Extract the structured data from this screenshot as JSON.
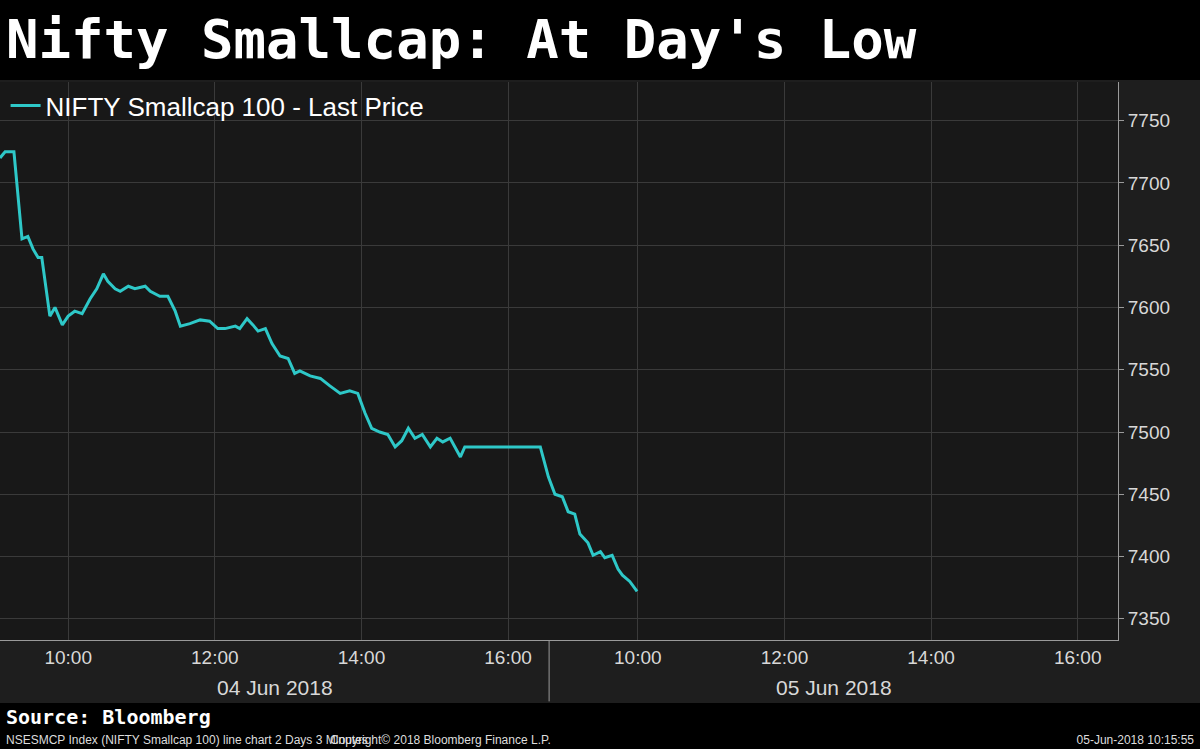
{
  "chart_data": {
    "type": "line",
    "title": "Nifty Smallcap: At Day's Low",
    "source": "Source: Bloomberg",
    "footer": [
      "NSESMCP Index (NIFTY Smallcap 100) line chart 2 Days 3 Minutes",
      "Copyright© 2018 Bloomberg Finance L.P.",
      "05-Jun-2018 10:15:55"
    ],
    "x": [
      9.07,
      9.14,
      9.26,
      9.37,
      9.45,
      9.52,
      9.59,
      9.64,
      9.75,
      9.82,
      9.92,
      10.0,
      10.09,
      10.19,
      10.3,
      10.39,
      10.48,
      10.54,
      10.64,
      10.71,
      10.82,
      10.91,
      11.05,
      11.12,
      11.25,
      11.36,
      11.46,
      11.53,
      11.66,
      11.8,
      11.93,
      12.04,
      12.14,
      12.28,
      12.34,
      12.44,
      12.52,
      12.59,
      12.69,
      12.78,
      12.89,
      13.0,
      13.09,
      13.16,
      13.3,
      13.44,
      13.57,
      13.71,
      13.84,
      13.95,
      14.05,
      14.14,
      14.25,
      14.36,
      14.46,
      14.55,
      14.64,
      14.73,
      14.83,
      14.94,
      15.03,
      15.11,
      15.21,
      15.28,
      15.35,
      15.41,
      16.44,
      16.55,
      16.64,
      16.74,
      16.82,
      16.91,
      16.98,
      17.09,
      17.16,
      17.26,
      17.32,
      17.42,
      17.5,
      17.56,
      17.66,
      17.76
    ],
    "series": [
      {
        "name": "NIFTY Smallcap 100 - Last Price",
        "color": "#2ec8c8",
        "values": [
          7720,
          7725,
          7725,
          7655,
          7657,
          7647,
          7640,
          7640,
          7593,
          7600,
          7586,
          7593,
          7597,
          7595,
          7607,
          7615,
          7627,
          7621,
          7615,
          7613,
          7617,
          7615,
          7617,
          7613,
          7609,
          7609,
          7597,
          7585,
          7587,
          7590,
          7589,
          7583,
          7583,
          7585,
          7583,
          7591,
          7586,
          7581,
          7583,
          7571,
          7561,
          7559,
          7547,
          7549,
          7545,
          7543,
          7537,
          7531,
          7533,
          7531,
          7515,
          7503,
          7500,
          7498,
          7488,
          7493,
          7503,
          7495,
          7498,
          7488,
          7495,
          7492,
          7495,
          7488,
          7480,
          7488,
          7488,
          7464,
          7450,
          7448,
          7436,
          7434,
          7418,
          7411,
          7401,
          7404,
          7399,
          7401,
          7390,
          7385,
          7380,
          7372
        ]
      }
    ],
    "xlim": [
      9.07,
      24.32
    ],
    "xticks": [
      {
        "value": 10,
        "label": "10:00"
      },
      {
        "value": 12,
        "label": "12:00"
      },
      {
        "value": 14,
        "label": "14:00"
      },
      {
        "value": 16,
        "label": "16:00"
      },
      {
        "value": 17.77,
        "label": "10:00"
      },
      {
        "value": 19.77,
        "label": "12:00"
      },
      {
        "value": 21.77,
        "label": "14:00"
      },
      {
        "value": 23.77,
        "label": "16:00"
      }
    ],
    "days": [
      {
        "label": "04 Jun 2018",
        "start": 9.07,
        "end": 16.56
      },
      {
        "label": "05 Jun 2018",
        "start": 16.56,
        "end": 24.32
      }
    ],
    "ylim": [
      7333,
      7781
    ],
    "yticks": [
      7350,
      7400,
      7450,
      7500,
      7550,
      7600,
      7650,
      7700,
      7750
    ],
    "grid": true,
    "legend": "top-left"
  }
}
